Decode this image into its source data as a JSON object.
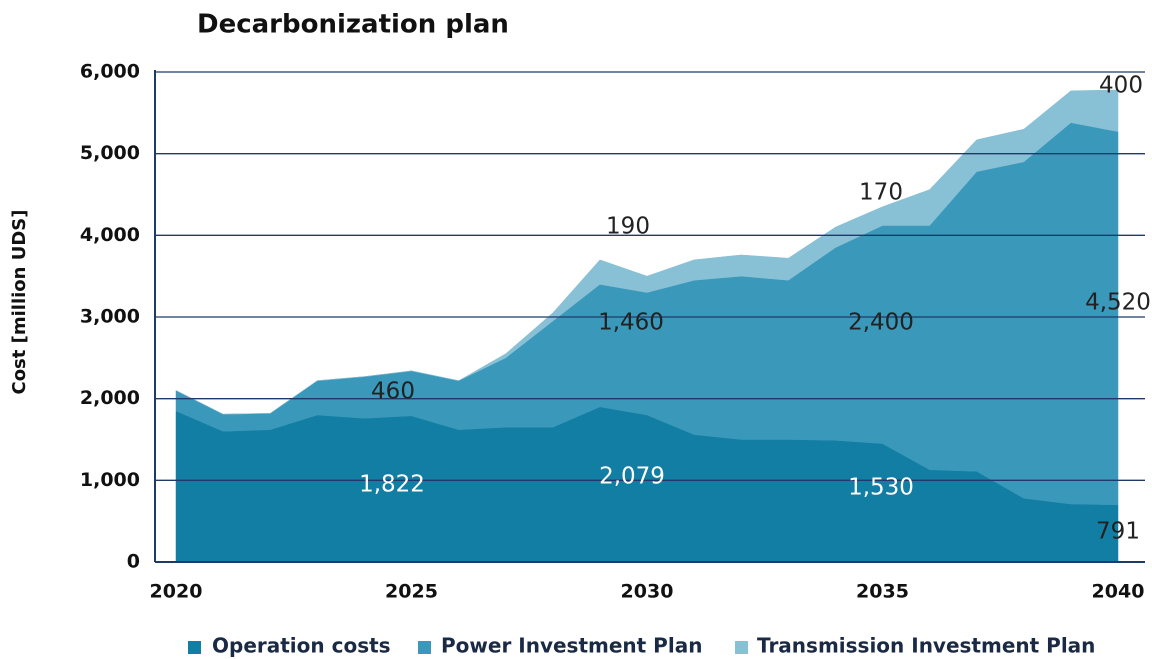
{
  "chart_data": {
    "type": "stacked_area",
    "title": "Decarbonization plan",
    "y_label": "Cost [million UDS]",
    "x": [
      2020,
      2021,
      2022,
      2023,
      2024,
      2025,
      2026,
      2027,
      2028,
      2029,
      2030,
      2031,
      2032,
      2033,
      2034,
      2035,
      2036,
      2037,
      2038,
      2039,
      2040
    ],
    "series": [
      {
        "name": "Operation costs",
        "color": "#137ea3",
        "values": [
          1850,
          1600,
          1620,
          1800,
          1760,
          1790,
          1620,
          1650,
          1650,
          1900,
          1800,
          1560,
          1500,
          1500,
          1490,
          1450,
          1130,
          1110,
          780,
          710,
          700
        ]
      },
      {
        "name": "Power Investment Plan",
        "color": "#3a98bb",
        "values": [
          250,
          210,
          200,
          420,
          510,
          550,
          600,
          850,
          1300,
          1500,
          1500,
          1890,
          2000,
          1950,
          2360,
          2670,
          2990,
          3670,
          4120,
          4670,
          4570
        ]
      },
      {
        "name": "Transmission Investment Plan",
        "color": "#88c0d5",
        "values": [
          0,
          0,
          0,
          0,
          0,
          0,
          0,
          50,
          100,
          300,
          200,
          250,
          260,
          270,
          250,
          230,
          440,
          390,
          400,
          390,
          510
        ]
      }
    ],
    "annotations": [
      "1,822",
      "460",
      "1,460",
      "190",
      "2,079",
      "2,400",
      "1,530",
      "170",
      "4,520",
      "400",
      "791"
    ],
    "xlim": [
      2020,
      2040
    ],
    "xticks": [
      2020,
      2025,
      2030,
      2035,
      2040
    ],
    "ylim": [
      0,
      6000
    ],
    "yticks": [
      0,
      {
        "value": 1000,
        "label": "1,000"
      },
      {
        "value": 2000,
        "label": "2,000"
      },
      {
        "value": 3000,
        "label": "3,000"
      },
      {
        "value": 4000,
        "label": "4,000"
      },
      {
        "value": 5000,
        "label": "5,000"
      },
      {
        "value": 6000,
        "label": "6,000"
      }
    ],
    "grid": true,
    "legend": "bottom"
  }
}
